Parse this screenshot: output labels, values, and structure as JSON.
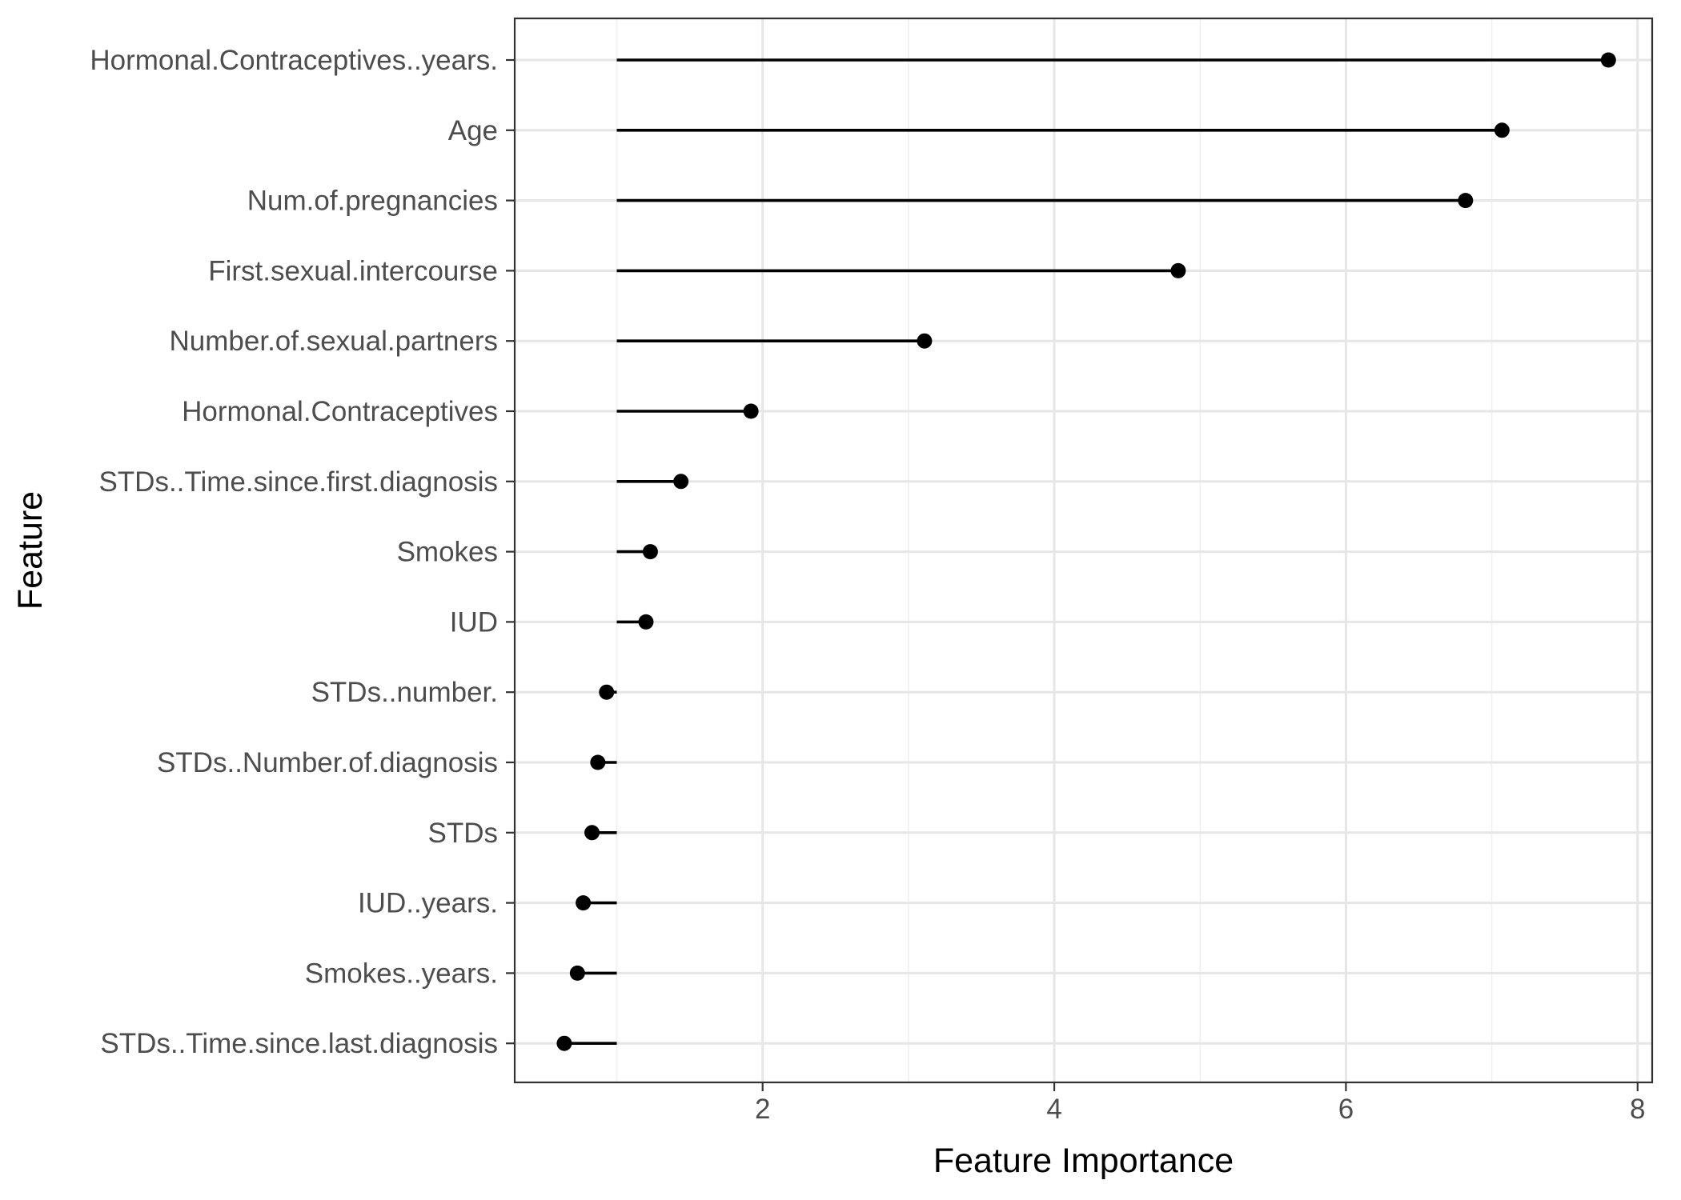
{
  "chart_data": {
    "type": "lollipop",
    "xlabel": "Feature Importance",
    "ylabel": "Feature",
    "xlim": [
      0.3,
      8.1
    ],
    "x_ticks": [
      2,
      4,
      6,
      8
    ],
    "baseline": 1,
    "grid": true,
    "theme": "black-and-white",
    "colors": {
      "point": "#000000",
      "segment": "#000000",
      "grid_major": "#e6e6e6",
      "grid_minor": "#f0f0f0",
      "panel_border": "#333333",
      "tick_text": "#4d4d4d"
    },
    "categories": [
      "Hormonal.Contraceptives..years.",
      "Age",
      "Num.of.pregnancies",
      "First.sexual.intercourse",
      "Number.of.sexual.partners",
      "Hormonal.Contraceptives",
      "STDs..Time.since.first.diagnosis",
      "Smokes",
      "IUD",
      "STDs..number.",
      "STDs..Number.of.diagnosis",
      "STDs",
      "IUD..years.",
      "Smokes..years.",
      "STDs..Time.since.last.diagnosis"
    ],
    "values": [
      7.8,
      7.07,
      6.82,
      4.85,
      3.11,
      1.92,
      1.44,
      1.23,
      1.2,
      0.93,
      0.87,
      0.83,
      0.77,
      0.73,
      0.64
    ]
  }
}
